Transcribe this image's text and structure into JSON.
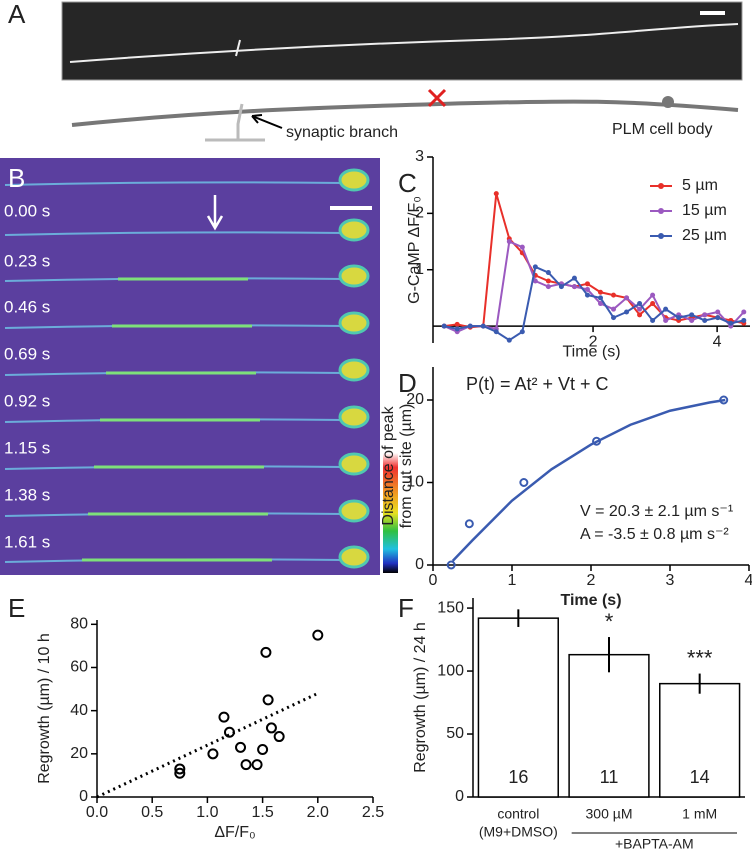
{
  "panel_a": {
    "label": "A",
    "annotations": [
      "synaptic branch",
      "PLM cell body"
    ]
  },
  "panel_b": {
    "label": "B",
    "time_labels": [
      "0.00 s",
      "0.23 s",
      "0.46 s",
      "0.69 s",
      "0.92 s",
      "1.15 s",
      "1.38 s",
      "1.61 s"
    ]
  },
  "chart_data": [
    {
      "type": "line",
      "label": "C",
      "ylabel": "G-CaMP ΔF/F₀",
      "xlabel": "Time (s)",
      "x": [
        -0.4,
        -0.19,
        0.02,
        0.23,
        0.44,
        0.65,
        0.86,
        1.07,
        1.28,
        1.49,
        1.7,
        1.91,
        2.12,
        2.33,
        2.54,
        2.75,
        2.96,
        3.17,
        3.38,
        3.59,
        3.8,
        4.01,
        4.22,
        4.43
      ],
      "series": [
        {
          "name": "5 µm",
          "color": "#e8302a",
          "values": [
            0,
            0.03,
            -0.02,
            0,
            2.35,
            1.55,
            1.3,
            0.9,
            0.8,
            0.75,
            0.7,
            0.75,
            0.6,
            0.55,
            0.5,
            0.2,
            0.4,
            0.15,
            0.1,
            0.15,
            0.2,
            0.15,
            0.1,
            0.05
          ]
        },
        {
          "name": "15 µm",
          "color": "#9b59c0",
          "values": [
            0,
            -0.1,
            0,
            0,
            -0.05,
            1.5,
            1.4,
            0.8,
            0.7,
            0.75,
            0.7,
            0.65,
            0.4,
            0.3,
            0.5,
            0.3,
            0.55,
            0.1,
            0.2,
            0.1,
            0.2,
            0.25,
            0,
            0.25
          ]
        },
        {
          "name": "25 µm",
          "color": "#3a5bb0",
          "values": [
            0,
            -0.05,
            0,
            0,
            -0.1,
            -0.25,
            -0.1,
            1.05,
            0.95,
            0.7,
            0.85,
            0.55,
            0.5,
            0.15,
            0.25,
            0.4,
            0.1,
            0.3,
            0.15,
            0.2,
            0.1,
            0.15,
            0.05,
            0.1
          ]
        }
      ],
      "xlim": [
        -0.58,
        4.53
      ],
      "ylim": [
        -0.3,
        3
      ],
      "xticks": [
        2,
        4
      ],
      "yticks": [
        1,
        2,
        3
      ]
    },
    {
      "type": "scatter",
      "label": "D",
      "ylabel": [
        "Distance of peak",
        "from cut site (µm)"
      ],
      "xlabel": "Time (s)",
      "equation": "P(t) = At² + Vt + C",
      "annotations": [
        "V = 20.3 ± 2.1 µm s⁻¹",
        "A = -3.5 ± 0.8 µm s⁻²"
      ],
      "x": [
        0.23,
        0.46,
        1.15,
        2.07,
        3.68
      ],
      "values": [
        0,
        5,
        10,
        15,
        20
      ],
      "color": "#3a5bb0",
      "fit": {
        "x": [
          0.25,
          0.5,
          1,
          1.5,
          2,
          2.5,
          3,
          3.5,
          3.7
        ],
        "values": [
          0.5,
          3,
          7.8,
          11.6,
          14.6,
          17,
          18.7,
          19.7,
          20
        ]
      },
      "xlim": [
        0,
        4
      ],
      "ylim": [
        0,
        24
      ],
      "xticks": [
        0,
        1,
        2,
        3,
        4
      ],
      "yticks": [
        0,
        10,
        20
      ]
    },
    {
      "type": "scatter",
      "label": "E",
      "ylabel": "Regrowth (µm) / 10 h",
      "xlabel": "ΔF/F₀",
      "x": [
        0.75,
        0.75,
        1.05,
        1.15,
        1.2,
        1.3,
        1.35,
        1.45,
        1.5,
        1.53,
        1.55,
        1.58,
        1.65,
        2.0
      ],
      "values": [
        13,
        11,
        20,
        37,
        30,
        23,
        15,
        15,
        22,
        67,
        45,
        32,
        28,
        75
      ],
      "color": "#000000",
      "trend": {
        "x": [
          0,
          2.0
        ],
        "values": [
          0,
          48
        ]
      },
      "xlim": [
        0,
        2.5
      ],
      "ylim": [
        0,
        82
      ],
      "xticks": [
        {
          "value": 0,
          "label": "0.0"
        },
        0.5,
        {
          "value": 1,
          "label": "1.0"
        },
        1.5,
        {
          "value": 2,
          "label": "2.0"
        },
        2.5
      ],
      "yticks": [
        0,
        20,
        40,
        60,
        80
      ]
    },
    {
      "type": "bar",
      "label": "F",
      "ylabel": "Regrowth (µm) / 24 h",
      "categories": [
        [
          "control",
          "(M9+DMSO)"
        ],
        [
          "300 µM"
        ],
        [
          "1 mM"
        ]
      ],
      "group_label": "+BAPTA-AM",
      "values": [
        142,
        113,
        90
      ],
      "errors": [
        7,
        14,
        8
      ],
      "counts": [
        16,
        11,
        14
      ],
      "significance": [
        null,
        "*",
        "***"
      ],
      "color": "#ffffff",
      "ylim": [
        0,
        158
      ],
      "yticks": [
        0,
        50,
        100,
        150
      ]
    }
  ]
}
